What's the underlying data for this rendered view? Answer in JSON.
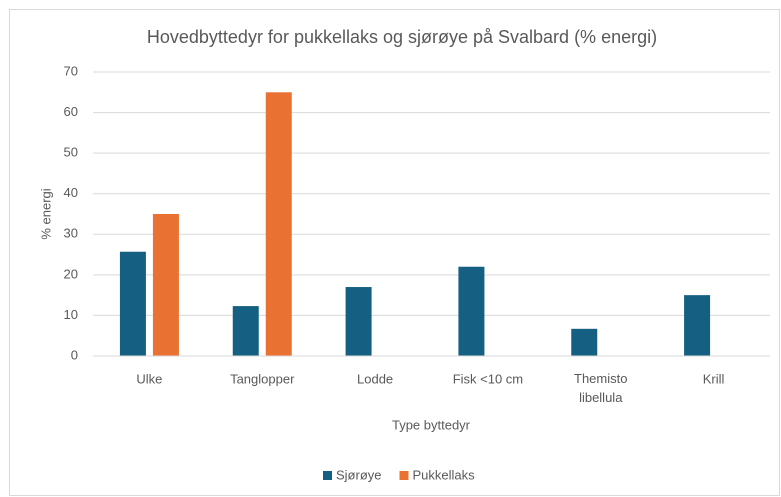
{
  "chart_data": {
    "type": "bar",
    "title": "Hovedbyttedyr for pukkellaks og sjørøye på Svalbard (% energi)",
    "x_label": "Type byttedyr",
    "y_label": "% energi",
    "categories": [
      "Ulke",
      "Tanglopper",
      "Lodde",
      "Fisk <10 cm",
      "Themisto libellula",
      "Krill"
    ],
    "series": [
      {
        "name": "Sjørøye",
        "color": "#156082",
        "values": [
          25.7,
          12.3,
          17,
          22,
          6.7,
          15
        ]
      },
      {
        "name": "Pukkellaks",
        "color": "#e97132",
        "values": [
          35,
          65,
          null,
          null,
          null,
          null
        ]
      }
    ],
    "ylim": [
      0,
      70
    ],
    "yticks": [
      0,
      10,
      20,
      30,
      40,
      50,
      60,
      70
    ],
    "grid": true,
    "legend": "bottom"
  }
}
